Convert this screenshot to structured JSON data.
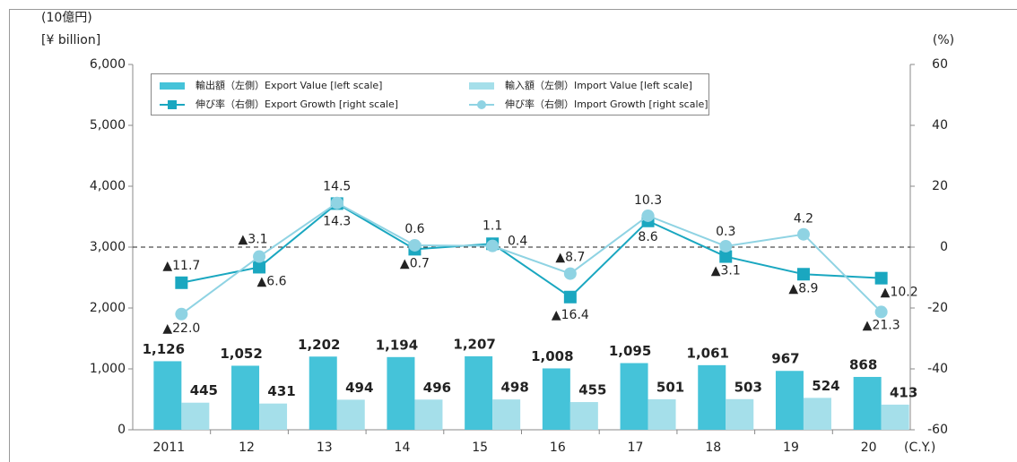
{
  "chart_data": {
    "type": "bar-line",
    "y_axis_label": "(10億円)",
    "y_axis_label_en": "[¥ billion]",
    "y2_axis_label": "(%)",
    "x_axis_label": "(C.Y.)",
    "categories": [
      "2011",
      "12",
      "13",
      "14",
      "15",
      "16",
      "17",
      "18",
      "19",
      "20"
    ],
    "ylim": [
      0,
      6000
    ],
    "yticks": [
      0,
      {
        "value": 1000,
        "label": "1,000"
      },
      {
        "value": 2000,
        "label": "2,000"
      },
      {
        "value": 3000,
        "label": "3,000"
      },
      {
        "value": 4000,
        "label": "4,000"
      },
      {
        "value": 5000,
        "label": "5,000"
      },
      {
        "value": 6000,
        "label": "6,000"
      }
    ],
    "y2lim": [
      -60,
      60
    ],
    "y2ticks": [
      -60,
      -40,
      -20,
      0,
      20,
      40,
      60
    ],
    "series": [
      {
        "name": "輸出額（左側）Export Value [left scale]",
        "type": "bar",
        "color": "#45c3d9",
        "values": [
          1126,
          1052,
          1202,
          1194,
          1207,
          1008,
          1095,
          1061,
          967,
          868
        ],
        "value_labels": [
          "1,126",
          "1,052",
          "1,202",
          "1,194",
          "1,207",
          "1,008",
          "1,095",
          "1,061",
          "967",
          "868"
        ]
      },
      {
        "name": "輸入額（左側）Import Value [left scale]",
        "type": "bar",
        "color": "#a5dfea",
        "values": [
          445,
          431,
          494,
          496,
          498,
          455,
          501,
          503,
          524,
          413
        ]
      },
      {
        "name": "伸び率（右側）Export Growth [right scale]",
        "type": "line",
        "marker": "square",
        "axis": "y2",
        "color": "#1aa7c0",
        "values": [
          -11.7,
          -6.6,
          14.3,
          -0.7,
          1.1,
          -16.4,
          8.6,
          -3.1,
          -8.9,
          -10.2
        ],
        "value_labels": [
          "▲11.7",
          "▲6.6",
          "14.3",
          "▲0.7",
          "1.1",
          "▲16.4",
          "8.6",
          "▲3.1",
          "▲8.9",
          "▲10.2"
        ]
      },
      {
        "name": "伸び率（右側）Import Growth [right scale]",
        "type": "line",
        "marker": "circle",
        "axis": "y2",
        "color": "#8fd3e3",
        "values": [
          -22.0,
          -3.1,
          14.5,
          0.6,
          0.4,
          -8.7,
          10.3,
          0.3,
          4.2,
          -21.3
        ],
        "value_labels": [
          "▲22.0",
          "▲3.1",
          "14.5",
          "0.6",
          "0.4",
          "▲8.7",
          "10.3",
          "0.3",
          "4.2",
          "▲21.3"
        ]
      }
    ]
  }
}
